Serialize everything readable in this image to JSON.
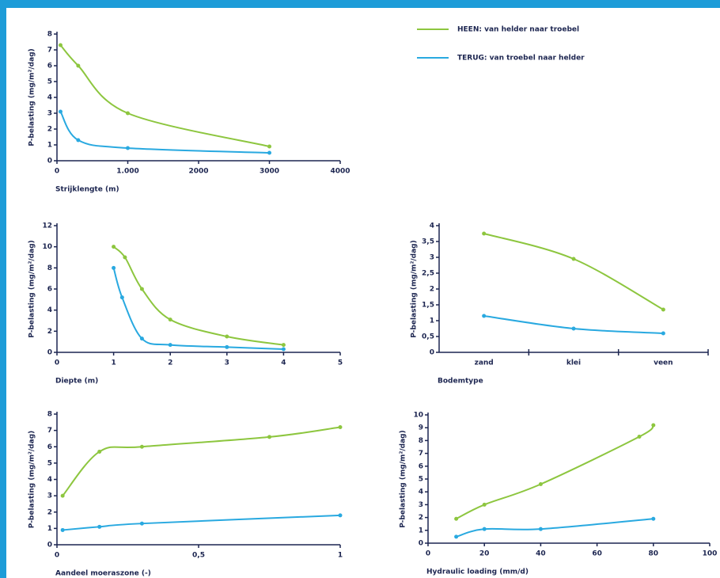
{
  "legend": [
    {
      "name": "HEEN: van helder naar troebel",
      "color": "#8dc63f"
    },
    {
      "name": "TERUG: van troebel naar helder",
      "color": "#29a9e0"
    }
  ],
  "chart_data": [
    {
      "type": "line",
      "y_label": "P-belasting (mg/m²/dag)",
      "x_label": "Strijklengte (m)",
      "xlim": [
        0,
        4000
      ],
      "xticks": [
        0,
        {
          "value": 1000,
          "label": "1.000"
        },
        2000,
        3000,
        4000
      ],
      "ylim": [
        0,
        8
      ],
      "yticks": [
        0,
        1,
        2,
        3,
        4,
        5,
        6,
        7,
        8
      ],
      "series": [
        {
          "color": "#8dc63f",
          "x": [
            50,
            300,
            1000,
            3000
          ],
          "values": [
            7.3,
            6.0,
            3.0,
            0.9
          ]
        },
        {
          "color": "#29a9e0",
          "x": [
            50,
            300,
            1000,
            3000
          ],
          "values": [
            3.1,
            1.3,
            0.8,
            0.5
          ]
        }
      ]
    },
    {
      "type": "line",
      "y_label": "P-belasting (mg/m²/dag)",
      "x_label": "Diepte (m)",
      "xlim": [
        0,
        5
      ],
      "xticks": [
        0,
        1,
        2,
        3,
        4,
        5
      ],
      "ylim": [
        0,
        12
      ],
      "yticks": [
        0,
        2,
        4,
        6,
        8,
        10,
        12
      ],
      "series": [
        {
          "color": "#8dc63f",
          "x": [
            1,
            1.2,
            1.5,
            2,
            3,
            4
          ],
          "values": [
            10,
            9,
            6,
            3.1,
            1.5,
            0.7
          ]
        },
        {
          "color": "#29a9e0",
          "x": [
            1,
            1.15,
            1.5,
            2,
            3,
            4
          ],
          "values": [
            8,
            5.2,
            1.3,
            0.7,
            0.5,
            0.3
          ]
        }
      ]
    },
    {
      "type": "line",
      "y_label": "P-belasting (mg/m²/dag)",
      "x_label": "Bodemtype",
      "categories": [
        "zand",
        "klei",
        "veen"
      ],
      "ylim": [
        0,
        4
      ],
      "yticks": [
        0,
        {
          "value": 0.5,
          "label": "0,5"
        },
        1,
        {
          "value": 1.5,
          "label": "1,5"
        },
        2,
        {
          "value": 2.5,
          "label": "2,5"
        },
        3,
        {
          "value": 3.5,
          "label": "3,5"
        },
        4
      ],
      "series": [
        {
          "color": "#8dc63f",
          "values": [
            3.75,
            2.95,
            1.35
          ]
        },
        {
          "color": "#29a9e0",
          "values": [
            1.15,
            0.75,
            0.6
          ]
        }
      ]
    },
    {
      "type": "line",
      "y_label": "P-belasting (mg/m²/dag)",
      "x_label": "Aandeel moeraszone (-)",
      "xlim": [
        0,
        1
      ],
      "xticks": [
        0,
        {
          "value": 0.5,
          "label": "0,5"
        },
        1
      ],
      "ylim": [
        0,
        8
      ],
      "yticks": [
        0,
        1,
        2,
        3,
        4,
        5,
        6,
        7,
        8
      ],
      "series": [
        {
          "color": "#8dc63f",
          "x": [
            0.02,
            0.15,
            0.3,
            0.75,
            1
          ],
          "values": [
            3.0,
            5.7,
            6.0,
            6.6,
            7.2
          ]
        },
        {
          "color": "#29a9e0",
          "x": [
            0.02,
            0.15,
            0.3,
            1
          ],
          "values": [
            0.9,
            1.1,
            1.3,
            1.8
          ]
        }
      ]
    },
    {
      "type": "line",
      "y_label": "P-belasting (mg/m²/dag)",
      "x_label": "Hydraulic loading (mm/d)",
      "xlim": [
        0,
        100
      ],
      "xticks": [
        0,
        20,
        40,
        60,
        80,
        100
      ],
      "ylim": [
        0,
        10
      ],
      "yticks": [
        0,
        1,
        2,
        3,
        4,
        5,
        6,
        7,
        8,
        9,
        10
      ],
      "series": [
        {
          "color": "#8dc63f",
          "x": [
            10,
            20,
            40,
            75,
            80
          ],
          "values": [
            1.9,
            3.0,
            4.6,
            8.3,
            9.2
          ]
        },
        {
          "color": "#29a9e0",
          "x": [
            10,
            20,
            40,
            80
          ],
          "values": [
            0.5,
            1.1,
            1.1,
            1.9
          ]
        }
      ]
    }
  ]
}
